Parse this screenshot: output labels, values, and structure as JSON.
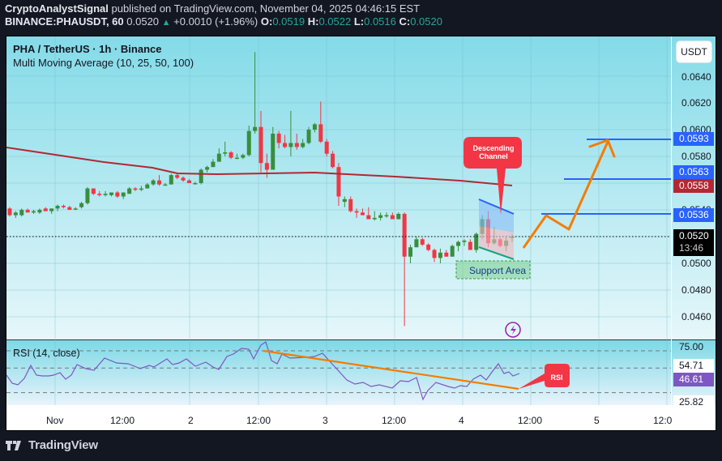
{
  "header": {
    "author": "CryptoAnalystSignal",
    "published_text": "published on TradingView.com, November 04, 2025 04:46:15 EST",
    "symbol": "BINANCE:PHAUSDT, 60",
    "last": "0.0520",
    "change": "+0.0010 (+1.96%)",
    "ohlc": {
      "o_label": "O:",
      "o": "0.0519",
      "h_label": "H:",
      "h": "0.0522",
      "l_label": "L:",
      "l": "0.0516",
      "c_label": "C:",
      "c": "0.0520"
    }
  },
  "chart": {
    "title": "PHA / TetherUS · 1h · Binance",
    "indicator": "Multi Moving Average (10, 25, 50, 100)",
    "currency_button": "USDT",
    "price_scale": [
      "0.0640",
      "0.0620",
      "0.0600",
      "0.0580",
      "0.0540",
      "0.0500",
      "0.0480",
      "0.0460"
    ],
    "price_tags": {
      "target3": "0.0593",
      "target2": "0.0563",
      "ma_value": "0.0558",
      "target1": "0.0536",
      "current_price": "0.0520",
      "countdown": "13:46"
    },
    "annotations": {
      "channel_label": "Descending Channel",
      "support_label": "Support Area",
      "rsi_callout": "RSI"
    },
    "colors": {
      "up": "#388e3c",
      "down": "#f23645",
      "ma": "#b22833",
      "target_line": "#2962ff",
      "arrow": "#f57c00",
      "rsi_line": "#7e57c2"
    }
  },
  "rsi": {
    "title": "RSI (14, close)",
    "levels": [
      "75.00",
      "54.71",
      "25.82"
    ],
    "current": "46.61"
  },
  "time_axis": [
    "Nov",
    "12:00",
    "2",
    "12:00",
    "3",
    "12:00",
    "4",
    "12:00",
    "5",
    "12:0"
  ],
  "footer": {
    "brand": "TradingView"
  },
  "chart_data": {
    "type": "candlestick",
    "title": "PHA / TetherUS · 1h · Binance",
    "ylabel": "USDT",
    "ylim": [
      0.045,
      0.066
    ],
    "candles_ohlc": [
      [
        0.0541,
        0.0542,
        0.0535,
        0.0536
      ],
      [
        0.0536,
        0.0539,
        0.0534,
        0.0538
      ],
      [
        0.0536,
        0.0541,
        0.0535,
        0.054
      ],
      [
        0.054,
        0.0541,
        0.0538,
        0.0538
      ],
      [
        0.0538,
        0.054,
        0.0537,
        0.0539
      ],
      [
        0.0538,
        0.0541,
        0.0537,
        0.054
      ],
      [
        0.0541,
        0.0542,
        0.0539,
        0.0539
      ],
      [
        0.0539,
        0.0541,
        0.0537,
        0.0541
      ],
      [
        0.0541,
        0.0544,
        0.0539,
        0.0543
      ],
      [
        0.0543,
        0.0544,
        0.0541,
        0.0542
      ],
      [
        0.0542,
        0.0543,
        0.054,
        0.054
      ],
      [
        0.0541,
        0.0542,
        0.054,
        0.0541
      ],
      [
        0.0542,
        0.0546,
        0.0541,
        0.0545
      ],
      [
        0.0545,
        0.0557,
        0.0544,
        0.0556
      ],
      [
        0.0556,
        0.0556,
        0.0551,
        0.0552
      ],
      [
        0.0552,
        0.0554,
        0.055,
        0.0551
      ],
      [
        0.0551,
        0.0554,
        0.055,
        0.0552
      ],
      [
        0.0551,
        0.0553,
        0.055,
        0.0553
      ],
      [
        0.0553,
        0.0554,
        0.0549,
        0.055
      ],
      [
        0.055,
        0.0553,
        0.0548,
        0.0553
      ],
      [
        0.0552,
        0.0557,
        0.0552,
        0.0556
      ],
      [
        0.0556,
        0.0557,
        0.0554,
        0.0555
      ],
      [
        0.0555,
        0.0558,
        0.0554,
        0.0556
      ],
      [
        0.0556,
        0.056,
        0.0556,
        0.0559
      ],
      [
        0.0559,
        0.0563,
        0.0558,
        0.0562
      ],
      [
        0.0562,
        0.0566,
        0.0558,
        0.0559
      ],
      [
        0.0559,
        0.056,
        0.0558,
        0.0559
      ],
      [
        0.0559,
        0.0567,
        0.0559,
        0.0566
      ],
      [
        0.0566,
        0.0567,
        0.0563,
        0.0564
      ],
      [
        0.0564,
        0.0565,
        0.0561,
        0.0562
      ],
      [
        0.0562,
        0.0563,
        0.056,
        0.056
      ],
      [
        0.056,
        0.0561,
        0.0559,
        0.056
      ],
      [
        0.056,
        0.0571,
        0.0559,
        0.057
      ],
      [
        0.057,
        0.0573,
        0.0568,
        0.0572
      ],
      [
        0.0572,
        0.0578,
        0.0572,
        0.0576
      ],
      [
        0.0576,
        0.0586,
        0.0576,
        0.0582
      ],
      [
        0.0582,
        0.0591,
        0.058,
        0.0583
      ],
      [
        0.0583,
        0.0584,
        0.0578,
        0.0579
      ],
      [
        0.0579,
        0.0582,
        0.0578,
        0.0579
      ],
      [
        0.0579,
        0.0582,
        0.0578,
        0.0581
      ],
      [
        0.0581,
        0.0603,
        0.058,
        0.0599
      ],
      [
        0.0599,
        0.0658,
        0.0597,
        0.0602
      ],
      [
        0.0602,
        0.0614,
        0.0568,
        0.0575
      ],
      [
        0.0575,
        0.0582,
        0.0564,
        0.057
      ],
      [
        0.057,
        0.0602,
        0.057,
        0.0597
      ],
      [
        0.0597,
        0.0599,
        0.0586,
        0.059
      ],
      [
        0.059,
        0.0596,
        0.0586,
        0.0587
      ],
      [
        0.0587,
        0.0614,
        0.058,
        0.059
      ],
      [
        0.059,
        0.0597,
        0.0585,
        0.0587
      ],
      [
        0.0587,
        0.0593,
        0.0586,
        0.059
      ],
      [
        0.059,
        0.0602,
        0.0589,
        0.06
      ],
      [
        0.06,
        0.0605,
        0.0598,
        0.0604
      ],
      [
        0.0604,
        0.0621,
        0.059,
        0.0591
      ],
      [
        0.0591,
        0.0593,
        0.058,
        0.0582
      ],
      [
        0.0582,
        0.0584,
        0.0571,
        0.0572
      ],
      [
        0.0572,
        0.0575,
        0.0543,
        0.055
      ],
      [
        0.0546,
        0.055,
        0.0542,
        0.0548
      ],
      [
        0.0548,
        0.055,
        0.0538,
        0.0539
      ],
      [
        0.0539,
        0.0541,
        0.0534,
        0.0538
      ],
      [
        0.0538,
        0.0541,
        0.0536,
        0.0536
      ],
      [
        0.0536,
        0.0542,
        0.0534,
        0.0533
      ],
      [
        0.0533,
        0.0539,
        0.0532,
        0.0534
      ],
      [
        0.0534,
        0.0538,
        0.0532,
        0.0536
      ],
      [
        0.0536,
        0.0538,
        0.0534,
        0.0536
      ],
      [
        0.0536,
        0.0538,
        0.0533,
        0.0533
      ],
      [
        0.0533,
        0.0538,
        0.0533,
        0.0537
      ],
      [
        0.0537,
        0.0538,
        0.0453,
        0.0505
      ],
      [
        0.0505,
        0.0514,
        0.05,
        0.0512
      ],
      [
        0.0512,
        0.052,
        0.0512,
        0.0518
      ],
      [
        0.0518,
        0.0519,
        0.0513,
        0.0514
      ],
      [
        0.0514,
        0.0515,
        0.0509,
        0.051
      ],
      [
        0.051,
        0.0511,
        0.0501,
        0.0504
      ],
      [
        0.0504,
        0.0511,
        0.05,
        0.0508
      ],
      [
        0.0508,
        0.051,
        0.0505,
        0.0505
      ],
      [
        0.0505,
        0.0514,
        0.0505,
        0.0513
      ],
      [
        0.0513,
        0.0517,
        0.0509,
        0.0516
      ],
      [
        0.0516,
        0.0518,
        0.0513,
        0.0517
      ],
      [
        0.0516,
        0.0518,
        0.051,
        0.051
      ],
      [
        0.051,
        0.0523,
        0.0508,
        0.0522
      ],
      [
        0.0522,
        0.0536,
        0.0518,
        0.0533
      ],
      [
        0.0533,
        0.0539,
        0.0512,
        0.0515
      ],
      [
        0.0515,
        0.0527,
        0.0514,
        0.0518
      ],
      [
        0.0518,
        0.0519,
        0.0512,
        0.0513
      ],
      [
        0.0513,
        0.052,
        0.0509,
        0.0517
      ],
      [
        0.0519,
        0.0522,
        0.0516,
        0.052
      ]
    ],
    "moving_average": {
      "name": "MA 100",
      "last": 0.0558
    },
    "targets": [
      0.0536,
      0.0563,
      0.0593
    ],
    "support_zone": [
      0.0498,
      0.0503
    ],
    "rsi": {
      "period": 14,
      "levels": [
        75.0,
        54.71,
        25.82
      ],
      "current": 46.61
    },
    "x_ticks": [
      "Nov",
      "12:00",
      "2",
      "12:00",
      "3",
      "12:00",
      "4",
      "12:00",
      "5",
      "12:0"
    ]
  }
}
